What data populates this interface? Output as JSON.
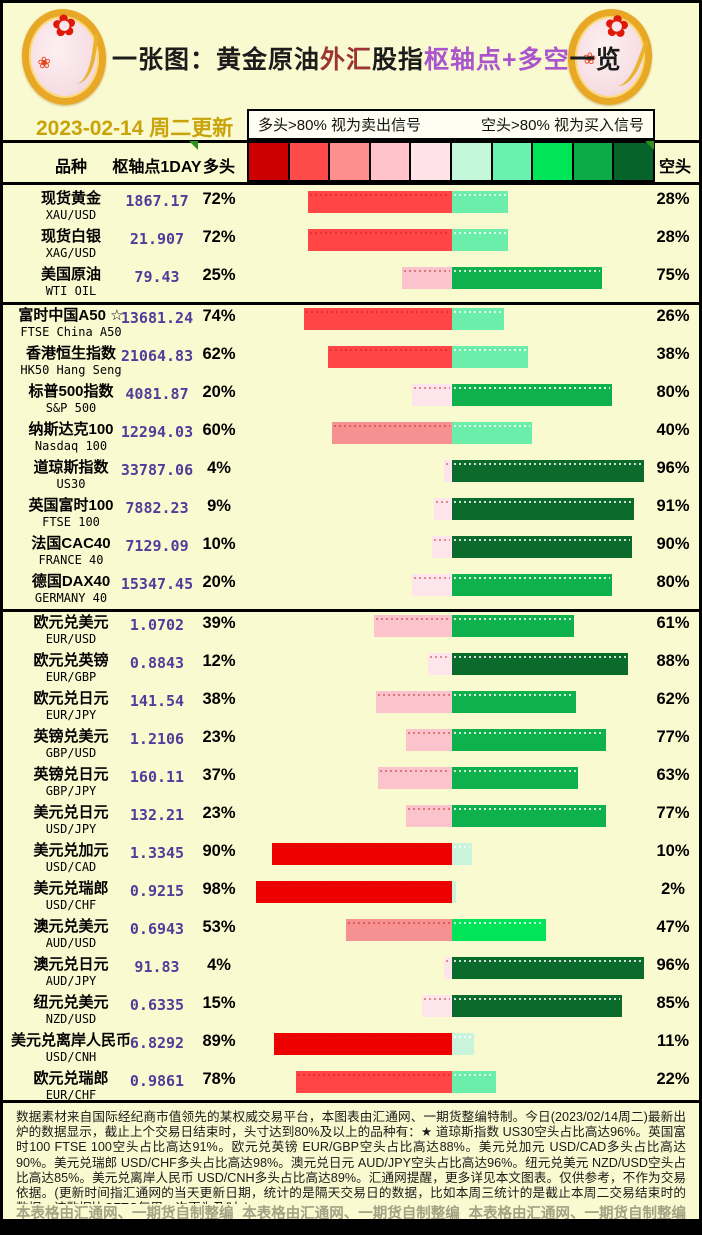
{
  "header": {
    "title_segments": [
      {
        "text": "一张图：黄金原油",
        "color": "#1c1c1c"
      },
      {
        "text": "外汇",
        "color": "#9c3434"
      },
      {
        "text": "股指",
        "color": "#1c1c1c"
      },
      {
        "text": "枢轴点+多空",
        "color": "#aa55cc"
      },
      {
        "text": "一览",
        "color": "#1c1c1c"
      }
    ],
    "date_text": "2023-02-14 周二更新",
    "legend_note_long": "多头>80% 视为卖出信号",
    "legend_note_short": "空头>80% 视为买入信号"
  },
  "icons": {
    "coin_flower_glyph": "✿",
    "coin_flower_small_glyph": "❀"
  },
  "columns": {
    "name": "品种",
    "pivot": "枢轴点1DAY",
    "long": "多头",
    "short": "空头"
  },
  "colors": {
    "background": "#fafad0",
    "pivot_text": "#533b99",
    "date_text": "#c9a30a",
    "legend_scale": [
      "#cc0000",
      "#ff4a4a",
      "#ff8f8f",
      "#ffc3c9",
      "#ffe3e9",
      "#c3f8da",
      "#69f2ad",
      "#00e557",
      "#0cab47",
      "#06632a"
    ],
    "long_bins_high_to_low": [
      "#ee0000",
      "#ff4545",
      "#f79090",
      "#fbc4cc",
      "#fde5eb"
    ],
    "short_bins_high_to_low": [
      "#0b6b2c",
      "#0fb14c",
      "#00e45a",
      "#6ceeab",
      "#c9f4db"
    ]
  },
  "sections": [
    [
      0,
      1,
      2
    ],
    [
      3,
      4,
      5,
      6,
      7,
      8,
      9,
      10
    ],
    [
      11,
      12,
      13,
      14,
      15,
      16,
      17,
      18,
      19,
      20,
      21,
      22,
      23
    ]
  ],
  "rows": [
    {
      "name_cn": "现货黄金",
      "name_en": "XAU/USD",
      "pivot": "1867.17",
      "long_pct": 72,
      "short_pct": 28
    },
    {
      "name_cn": "现货白银",
      "name_en": "XAG/USD",
      "pivot": "21.907",
      "long_pct": 72,
      "short_pct": 28
    },
    {
      "name_cn": "美国原油",
      "name_en": "WTI OIL",
      "pivot": "79.43",
      "long_pct": 25,
      "short_pct": 75
    },
    {
      "name_cn": "富时中国A50 ☆",
      "name_en": "FTSE China A50",
      "pivot": "13681.24",
      "long_pct": 74,
      "short_pct": 26
    },
    {
      "name_cn": "香港恒生指数",
      "name_en": "HK50 Hang Seng",
      "pivot": "21064.83",
      "long_pct": 62,
      "short_pct": 38
    },
    {
      "name_cn": "标普500指数",
      "name_en": "S&P 500",
      "pivot": "4081.87",
      "long_pct": 20,
      "short_pct": 80
    },
    {
      "name_cn": "纳斯达克100",
      "name_en": "Nasdaq 100",
      "pivot": "12294.03",
      "long_pct": 60,
      "short_pct": 40
    },
    {
      "name_cn": "道琼斯指数",
      "name_en": "US30",
      "pivot": "33787.06",
      "long_pct": 4,
      "short_pct": 96
    },
    {
      "name_cn": "英国富时100",
      "name_en": "FTSE 100",
      "pivot": "7882.23",
      "long_pct": 9,
      "short_pct": 91
    },
    {
      "name_cn": "法国CAC40",
      "name_en": "FRANCE 40",
      "pivot": "7129.09",
      "long_pct": 10,
      "short_pct": 90
    },
    {
      "name_cn": "德国DAX40",
      "name_en": "GERMANY 40",
      "pivot": "15347.45",
      "long_pct": 20,
      "short_pct": 80
    },
    {
      "name_cn": "欧元兑美元",
      "name_en": "EUR/USD",
      "pivot": "1.0702",
      "long_pct": 39,
      "short_pct": 61
    },
    {
      "name_cn": "欧元兑英镑",
      "name_en": "EUR/GBP",
      "pivot": "0.8843",
      "long_pct": 12,
      "short_pct": 88
    },
    {
      "name_cn": "欧元兑日元",
      "name_en": "EUR/JPY",
      "pivot": "141.54",
      "long_pct": 38,
      "short_pct": 62
    },
    {
      "name_cn": "英镑兑美元",
      "name_en": "GBP/USD",
      "pivot": "1.2106",
      "long_pct": 23,
      "short_pct": 77
    },
    {
      "name_cn": "英镑兑日元",
      "name_en": "GBP/JPY",
      "pivot": "160.11",
      "long_pct": 37,
      "short_pct": 63
    },
    {
      "name_cn": "美元兑日元",
      "name_en": "USD/JPY",
      "pivot": "132.21",
      "long_pct": 23,
      "short_pct": 77
    },
    {
      "name_cn": "美元兑加元",
      "name_en": "USD/CAD",
      "pivot": "1.3345",
      "long_pct": 90,
      "short_pct": 10
    },
    {
      "name_cn": "美元兑瑞郎",
      "name_en": "USD/CHF",
      "pivot": "0.9215",
      "long_pct": 98,
      "short_pct": 2
    },
    {
      "name_cn": "澳元兑美元",
      "name_en": "AUD/USD",
      "pivot": "0.6943",
      "long_pct": 53,
      "short_pct": 47
    },
    {
      "name_cn": "澳元兑日元",
      "name_en": "AUD/JPY",
      "pivot": "91.83",
      "long_pct": 4,
      "short_pct": 96
    },
    {
      "name_cn": "纽元兑美元",
      "name_en": "NZD/USD",
      "pivot": "0.6335",
      "long_pct": 15,
      "short_pct": 85
    },
    {
      "name_cn": "美元兑离岸人民币",
      "name_en": "USD/CNH",
      "pivot": "6.8292",
      "long_pct": 89,
      "short_pct": 11
    },
    {
      "name_cn": "欧元兑瑞郎",
      "name_en": "EUR/CHF",
      "pivot": "0.9861",
      "long_pct": 78,
      "short_pct": 22
    }
  ],
  "footer": {
    "paragraph": "数据素材来自国际经纪商市值领先的某权威交易平台，本图表由汇通网、一期货整编特制。今日(2023/02/14周二)最新出炉的数据显示，截止上个交易日结束时，头寸达到80%及以上的品种有：★ 道琼斯指数 US30空头占比高达96%。英国富时100 FTSE 100空头占比高达91%。欧元兑英镑 EUR/GBP空头占比高达88%。美元兑加元 USD/CAD多头占比高达90%。美元兑瑞郎 USD/CHF多头占比高达98%。澳元兑日元 AUD/JPY空头占比高达96%。纽元兑美元 NZD/USD空头占比高达85%。美元兑离岸人民币 USD/CNH多头占比高达89%。汇通网提醒，更多详见本文图表。仅供参考，不作为交易依据。(更新时间指汇通网的当天更新日期，统计的是隔天交易日的数据，比如本周三统计的是截止本周二交易结束时的数据。该数据比CFTC每周一次更为及时。)",
    "watermarks": [
      "本表格由汇通网、一期货自制整编",
      "本表格由汇通网、一期货自制整编",
      "本表格由汇通网、一期货自制整编"
    ]
  },
  "chart_data": {
    "type": "bar",
    "title": "一张图：黄金原油外汇股指枢轴点+多空一览",
    "subtitle": "2023-02-14 周二更新",
    "orientation": "horizontal",
    "legend_position": "top",
    "legend_notes": [
      "多头>80% 视为卖出信号",
      "空头>80% 视为买入信号"
    ],
    "categories": [
      "XAU/USD",
      "XAG/USD",
      "WTI OIL",
      "FTSE China A50",
      "HK50 Hang Seng",
      "S&P 500",
      "Nasdaq 100",
      "US30",
      "FTSE 100",
      "FRANCE 40",
      "GERMANY 40",
      "EUR/USD",
      "EUR/GBP",
      "EUR/JPY",
      "GBP/USD",
      "GBP/JPY",
      "USD/JPY",
      "USD/CAD",
      "USD/CHF",
      "AUD/USD",
      "AUD/JPY",
      "NZD/USD",
      "USD/CNH",
      "EUR/CHF"
    ],
    "series": [
      {
        "name": "枢轴点1DAY",
        "values": [
          1867.17,
          21.907,
          79.43,
          13681.24,
          21064.83,
          4081.87,
          12294.03,
          33787.06,
          7882.23,
          7129.09,
          15347.45,
          1.0702,
          0.8843,
          141.54,
          1.2106,
          160.11,
          132.21,
          1.3345,
          0.9215,
          0.6943,
          91.83,
          0.6335,
          6.8292,
          0.9861
        ]
      },
      {
        "name": "多头%",
        "values": [
          72,
          72,
          25,
          74,
          62,
          20,
          60,
          4,
          9,
          10,
          20,
          39,
          12,
          38,
          23,
          37,
          23,
          90,
          98,
          53,
          4,
          15,
          89,
          78
        ]
      },
      {
        "name": "空头%",
        "values": [
          28,
          28,
          75,
          26,
          38,
          80,
          40,
          96,
          91,
          90,
          80,
          61,
          88,
          62,
          77,
          63,
          77,
          10,
          2,
          47,
          96,
          85,
          11,
          22
        ]
      }
    ],
    "value_range": [
      0,
      100
    ],
    "grid": false
  }
}
